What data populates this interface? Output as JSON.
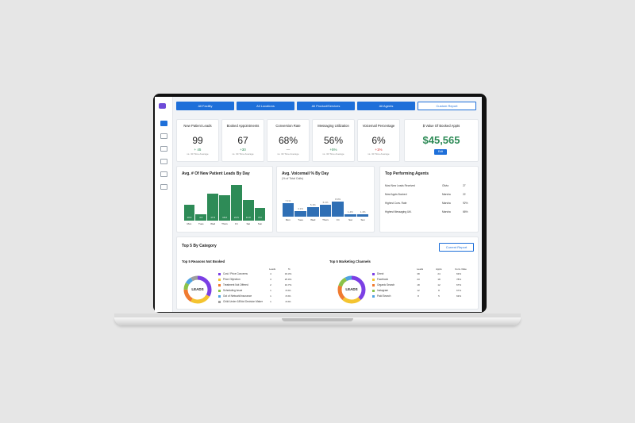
{
  "filters": [
    {
      "label": "All Facility"
    },
    {
      "label": "All Locations"
    },
    {
      "label": "All Product/Services"
    },
    {
      "label": "All Agents"
    }
  ],
  "report_button": "Custom Report",
  "kpis": [
    {
      "title": "New Patient Leads",
      "value": "99",
      "delta": "+ 45",
      "sub": "vs. 30 Time Average",
      "tone": "green"
    },
    {
      "title": "Booked Appointments",
      "value": "67",
      "delta": "+30",
      "sub": "vs. 30 Time Average",
      "tone": "green"
    },
    {
      "title": "Conversion Rate",
      "value": "68%",
      "delta": "—",
      "sub": "vs. 30 Time Average",
      "tone": "gray"
    },
    {
      "title": "Messaging Utilization",
      "value": "56%",
      "delta": "+5%",
      "sub": "vs. 30 Time Average",
      "tone": "green"
    },
    {
      "title": "Voicemail Percentage",
      "value": "6%",
      "delta": "+1%",
      "sub": "vs. 30 Time Average",
      "tone": "red"
    }
  ],
  "booked_value": {
    "title": "$ Value Of Booked Appts",
    "value": "$45,565",
    "button": "Edit"
  },
  "leads_chart": {
    "title": "Avg. # Of New Patient Leads By Day",
    "chart_data": {
      "type": "bar",
      "categories": [
        "Mon",
        "Tues",
        "Wed",
        "Thurs",
        "Fri",
        "Sat",
        "Sun"
      ],
      "values": [
        10.0,
        4.0,
        17.0,
        16.0,
        22.5,
        13.0,
        8.0
      ],
      "ylim": [
        0,
        25
      ],
      "color": "#2e8b57"
    }
  },
  "voicemail_chart": {
    "title": "Avg. Voicemail % By Day",
    "subtitle": "(% of Total Calls)",
    "chart_data": {
      "type": "bar",
      "categories": [
        "Mon",
        "Tues",
        "Wed",
        "Thurs",
        "Fri",
        "Sat",
        "Sun"
      ],
      "values": [
        7.1,
        3.1,
        5.1,
        6.1,
        8.0,
        1.4,
        1.4
      ],
      "labels": [
        "7.1%",
        "3.1%",
        "5.1%",
        "6.1%",
        "8.0%",
        "1.4%",
        "1.4%"
      ],
      "ylim": [
        0,
        25
      ],
      "color": "#2f6fb5"
    }
  },
  "agents": {
    "title": "Top Performing Agents",
    "rows": [
      {
        "label": "Most New Leads Received",
        "name": "Olivia",
        "value": "27"
      },
      {
        "label": "Most Appts Booked",
        "name": "Marsha",
        "value": "22"
      },
      {
        "label": "Highest Conv. Rate",
        "name": "Marsha",
        "value": "92%"
      },
      {
        "label": "Highest Messaging Util.",
        "name": "Marsha",
        "value": "66%"
      }
    ]
  },
  "top5": {
    "title": "Top 5 By Category",
    "button": "Current Report",
    "reasons": {
      "title": "Top 5 Reasons Not Booked",
      "center": "LEADS",
      "headers": [
        "Leads",
        "%"
      ],
      "items": [
        {
          "label": "Cost / Price Concerns",
          "leads": "4",
          "pct": "33.3%",
          "color": "#7b3fe4"
        },
        {
          "label": "Price Objection",
          "leads": "3",
          "pct": "25.0%",
          "color": "#f4c430"
        },
        {
          "label": "Treatment Not Offered",
          "leads": "2",
          "pct": "16.7%",
          "color": "#f07b30"
        },
        {
          "label": "Scheduling Issue",
          "leads": "1",
          "pct": "8.3%",
          "color": "#8bc34a"
        },
        {
          "label": "Out of Network/Insurance",
          "leads": "1",
          "pct": "8.3%",
          "color": "#4fa3e0"
        },
        {
          "label": "Child Under 18/Not Decision Maker",
          "leads": "1",
          "pct": "8.3%",
          "color": "#9e9e9e"
        }
      ]
    },
    "channels": {
      "title": "Top 5 Marketing Channels",
      "center": "LEADS",
      "headers": [
        "Leads",
        "Appts",
        "Conv. Rate"
      ],
      "items": [
        {
          "label": "Direct",
          "leads": "38",
          "appts": "24",
          "rate": "63%",
          "color": "#7b3fe4"
        },
        {
          "label": "Facebook",
          "leads": "23",
          "appts": "18",
          "rate": "78%",
          "color": "#f4c430"
        },
        {
          "label": "Organic Search",
          "leads": "18",
          "appts": "12",
          "rate": "67%",
          "color": "#f07b30"
        },
        {
          "label": "Instagram",
          "leads": "12",
          "appts": "8",
          "rate": "67%",
          "color": "#8bc34a"
        },
        {
          "label": "Paid Search",
          "leads": "8",
          "appts": "5",
          "rate": "63%",
          "color": "#4fa3e0"
        }
      ]
    }
  }
}
